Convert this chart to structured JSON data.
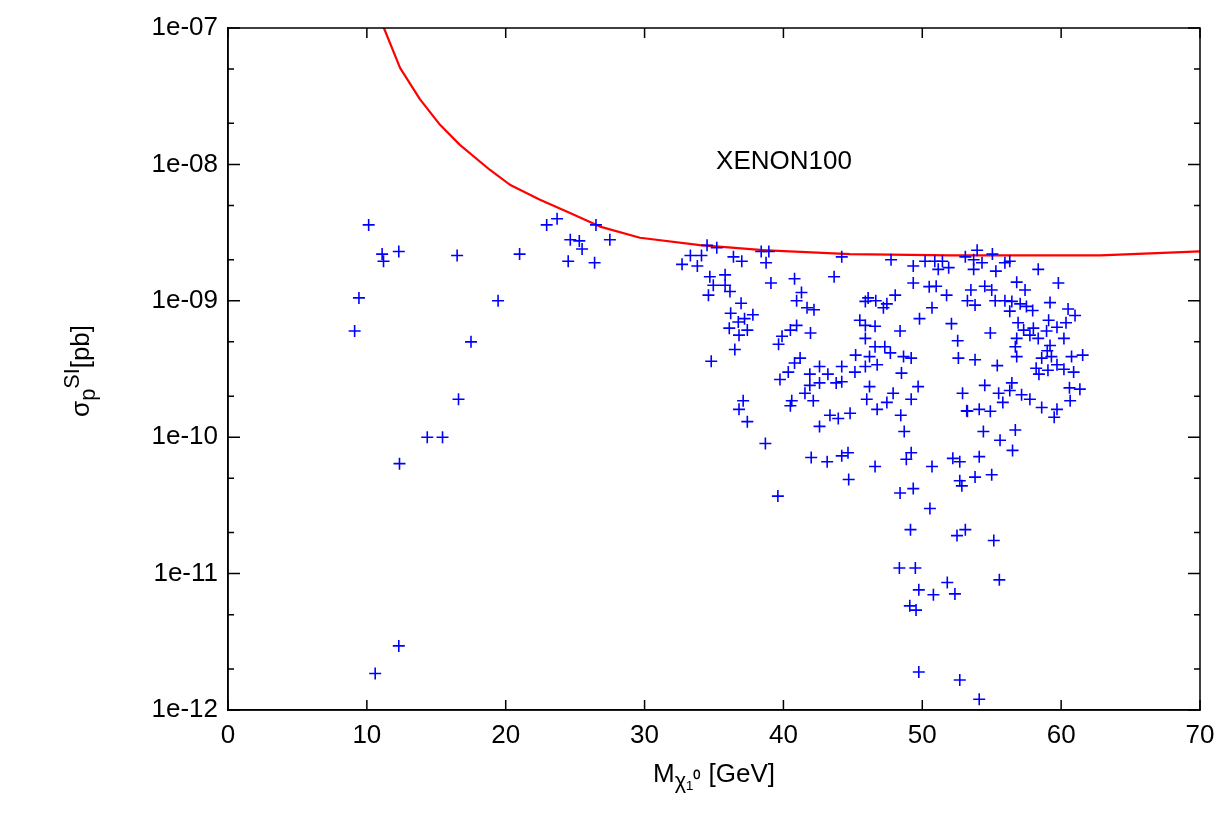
{
  "chart_data": {
    "type": "scatter",
    "xlabel": "M$_{χ₁⁰}$ [GeV]",
    "ylabel": "σ$_{p}$$^{SI}$[pb]",
    "log": "y",
    "marker": "cross",
    "xlim": [
      0,
      70
    ],
    "ylim": [
      1e-12,
      1e-07
    ],
    "xticks": [
      0,
      10,
      20,
      30,
      40,
      50,
      60,
      70
    ],
    "yticks": [
      {
        "value": 1e-12,
        "label": "1e-12"
      },
      {
        "value": 2e-12,
        "label": null
      },
      {
        "value": 5e-12,
        "label": null
      },
      {
        "value": 1e-11,
        "label": "1e-11"
      },
      {
        "value": 2e-11,
        "label": null
      },
      {
        "value": 5e-11,
        "label": null
      },
      {
        "value": 1e-10,
        "label": "1e-10"
      },
      {
        "value": 2e-10,
        "label": null
      },
      {
        "value": 5e-10,
        "label": null
      },
      {
        "value": 1e-09,
        "label": "1e-09"
      },
      {
        "value": 2e-09,
        "label": null
      },
      {
        "value": 5e-09,
        "label": null
      },
      {
        "value": 1e-08,
        "label": "1e-08"
      },
      {
        "value": 2e-08,
        "label": null
      },
      {
        "value": 5e-08,
        "label": null
      },
      {
        "value": 1e-07,
        "label": "1e-07"
      }
    ],
    "annotations": [
      "XENON100"
    ],
    "series": [
      {
        "type": "scatter",
        "color": "#0000ff",
        "x": [
          10.13,
          11.1,
          11.2,
          12.3,
          9.43,
          9.12,
          16.5,
          21.0,
          19.45,
          17.5,
          16.6,
          14.35,
          15.45,
          12.35,
          12.3,
          10.6,
          22.95,
          23.7,
          24.65,
          25.3,
          25.5,
          24.5,
          26.4,
          26.5,
          27.5,
          32.7,
          33.3,
          34.1,
          33.8,
          34.5,
          35.2,
          34.7,
          34.95,
          34.6,
          34.8,
          35.8,
          35.8,
          36.4,
          37.0,
          38.4,
          38.95,
          38.75,
          36.15,
          39.1,
          40.8,
          41.3,
          40.95,
          41.7,
          42.2,
          43.65,
          44.2,
          47.75,
          36.95,
          36.2,
          37.2,
          37.8,
          36.1,
          36.75,
          36.8,
          37.4,
          36.5,
          40.95,
          40.5,
          39.9,
          39.65,
          41.95,
          41.2,
          40.8,
          40.35,
          39.75,
          42.6,
          41.9,
          41.9,
          42.6,
          41.55,
          42.15,
          40.6,
          40.5,
          43.2,
          43.8,
          44.2,
          44.2,
          45.15,
          45.2,
          45.9,
          46.2,
          46.75,
          46.6,
          47.3,
          47.7,
          45.9,
          46.6,
          45.5,
          45.9,
          48.4,
          45.9,
          46.1,
          46.65,
          47.2,
          47.45,
          48.05,
          49.35,
          49.35,
          50.2,
          50.9,
          51.45,
          51.15,
          51.9,
          50.5,
          51.0,
          51.75,
          49.8,
          50.7,
          52.1,
          52.55,
          52.6,
          48.65,
          49.2,
          48.5,
          49.7,
          47.9,
          47.45,
          46.75,
          46.0,
          46.2,
          49.2,
          48.45,
          48.7,
          44.8,
          43.95,
          43.35,
          42.6,
          38.7,
          37.1,
          36.8,
          37.4,
          42.0,
          43.15,
          44.2,
          44.65,
          44.7,
          46.6,
          39.6,
          48.85,
          49.2,
          48.4,
          49.35,
          50.55,
          50.7,
          52.2,
          52.7,
          52.7,
          52.85,
          52.9,
          53.2,
          53.1,
          53.95,
          55.05,
          53.7,
          54.3,
          53.7,
          55.3,
          55.95,
          56.3,
          58.35,
          59.8,
          56.8,
          57.4,
          53.5,
          54.5,
          55.0,
          55.25,
          53.25,
          53.8,
          55.95,
          56.45,
          57.05,
          57.5,
          56.3,
          57.95,
          59.2,
          60.5,
          61.0,
          60.35,
          59.7,
          59.1,
          58.95,
          56.9,
          57.3,
          58.0,
          57.75,
          58.35,
          56.8,
          56.7,
          54.9,
          60.2,
          59.2,
          59.0,
          59.3,
          58.6,
          56.8,
          60.75,
          61.55,
          59.7,
          58.2,
          59.05,
          58.4,
          60.2,
          60.9,
          55.4,
          53.8,
          54.5,
          56.45,
          56.3,
          55.5,
          57.15,
          57.75,
          55.8,
          58.6,
          59.7,
          60.6,
          61.35,
          60.65,
          59.5,
          53.25,
          54.1,
          54.9,
          54.4,
          56.7,
          55.6,
          56.5,
          54.1,
          53.8,
          55.0,
          49.15,
          53.1,
          52.5,
          55.15,
          48.35,
          49.5,
          55.55,
          51.8,
          49.75,
          50.8,
          52.35,
          49.1,
          49.55,
          49.75,
          52.7,
          54.1
        ],
        "values": [
          3.6e-09,
          2.2e-09,
          1.95e-09,
          2.3e-09,
          1.05e-09,
          6e-10,
          2.15e-09,
          2.2e-09,
          1e-09,
          5e-10,
          1.9e-10,
          1e-10,
          1e-10,
          6.4e-11,
          2.95e-12,
          1.85e-12,
          3.6e-09,
          4e-09,
          2.8e-09,
          2.75e-09,
          2.4e-09,
          1.95e-09,
          1.9e-09,
          3.6e-09,
          2.8e-09,
          1.85e-09,
          2.15e-09,
          2.15e-09,
          1.8e-09,
          2.55e-09,
          2.45e-09,
          1.5e-09,
          1.3e-09,
          1.1e-09,
          3.6e-10,
          1.55e-09,
          1.3e-09,
          2.1e-09,
          1.95e-09,
          2.3e-09,
          2.3e-09,
          1.9e-09,
          1.17e-09,
          1.35e-09,
          1.45e-09,
          1.15e-09,
          1e-09,
          8.9e-10,
          8.6e-10,
          1.5e-09,
          2.1e-09,
          2e-09,
          9.6e-10,
          8.1e-10,
          7.4e-10,
          7.9e-10,
          6.3e-10,
          7e-10,
          5.6e-10,
          6.1e-10,
          4.4e-10,
          6.6e-10,
          6.1e-10,
          5.5e-10,
          4.8e-10,
          5.8e-10,
          3.8e-10,
          3.5e-10,
          3e-10,
          2.65e-10,
          3.3e-10,
          2.9e-10,
          2.4e-10,
          2.5e-10,
          2.1e-10,
          1.85e-10,
          1.85e-10,
          1.7e-10,
          2.9e-10,
          2.5e-10,
          3.3e-10,
          2.55e-10,
          3e-10,
          4e-10,
          3.3e-10,
          3.9e-10,
          3.4e-10,
          4.6e-10,
          4.6e-10,
          4.15e-10,
          5.3e-10,
          6.5e-10,
          7.2e-10,
          6.6e-10,
          6e-10,
          9.9e-10,
          1.05e-09,
          1e-09,
          8.9e-10,
          9.5e-10,
          1.1e-09,
          1.8e-09,
          1.35e-09,
          1.95e-09,
          1.95e-09,
          1.95e-09,
          1.7e-09,
          1.75e-09,
          1.27e-09,
          1.28e-09,
          1.1e-09,
          7.4e-10,
          8.9e-10,
          6.8e-10,
          5.1e-10,
          3.8e-10,
          3.9e-10,
          3.8e-10,
          2.95e-10,
          2.35e-10,
          2.1e-10,
          1.8e-10,
          1.6e-10,
          1.9e-10,
          2.35e-10,
          1.9e-10,
          1.45e-10,
          1.1e-10,
          1.5e-10,
          1.37e-10,
          1.45e-10,
          1.2e-10,
          9e-11,
          1.85e-10,
          1.6e-10,
          1.3e-10,
          7.1e-11,
          6.6e-11,
          7.3e-11,
          7.7e-11,
          4.9e-11,
          6.1e-11,
          3.7e-11,
          6.9e-11,
          7.7e-11,
          3.9e-11,
          4.2e-11,
          3e-11,
          6.1e-11,
          7e-11,
          6.6e-11,
          4.8e-11,
          4.4e-11,
          2.1e-10,
          1.56e-10,
          2.1e-09,
          2.35e-09,
          2.2e-09,
          2e-09,
          1.9e-09,
          1.7e-09,
          1.65e-09,
          1.9e-09,
          1.95e-09,
          1.7e-09,
          1.35e-09,
          1.37e-09,
          1.2e-09,
          1.2e-09,
          1.28e-09,
          1.2e-09,
          1e-09,
          1e-09,
          9.3e-10,
          1e-09,
          9.9e-10,
          9.5e-10,
          9.1e-10,
          8.4e-10,
          8.5e-10,
          9.7e-10,
          8.7e-10,
          7.8e-10,
          6.9e-10,
          6.4e-10,
          7.2e-10,
          6e-10,
          6.9e-10,
          6.1e-10,
          6.3e-10,
          5.6e-10,
          5.3e-10,
          5.3e-10,
          4.6e-10,
          5.8e-10,
          5.3e-10,
          4.7e-10,
          4.3e-10,
          3.9e-10,
          3.8e-10,
          3.9e-10,
          3.9e-10,
          4e-10,
          3.4e-10,
          3.2e-10,
          3.1e-10,
          2.9e-10,
          3.15e-10,
          3e-10,
          3.35e-10,
          3.7e-10,
          2.4e-10,
          2.5e-10,
          2.2e-10,
          2.1e-10,
          2.05e-10,
          1.9e-10,
          1.8e-10,
          1.65e-10,
          1.6e-10,
          2.3e-10,
          2.25e-10,
          1.85e-10,
          1.4e-10,
          1.55e-10,
          1.6e-10,
          1.55e-10,
          1.1e-10,
          1.13e-10,
          9.5e-11,
          8e-11,
          7.2e-11,
          5.1e-11,
          5.3e-11,
          2.1e-11,
          2.1e-11,
          1.9e-11,
          1.75e-11,
          1.1e-11,
          1.1e-11,
          9e-12,
          8.6e-12,
          7.6e-12,
          7e-12,
          7.1e-12,
          5.8e-12,
          5.4e-12,
          1.9e-12,
          1.66e-12,
          1.2e-12
        ]
      },
      {
        "type": "line",
        "color": "#ff0000",
        "marker": "none",
        "x": [
          11.23,
          12.39,
          13.83,
          15.27,
          16.7,
          18.87,
          20.3,
          22.47,
          24.63,
          26.79,
          29.67,
          33.99,
          38.31,
          44.8,
          52.0,
          62.8,
          70
        ],
        "values": [
          1e-07,
          5.1e-08,
          3e-08,
          1.95e-08,
          1.39e-08,
          9.1e-09,
          7.1e-09,
          5.5e-09,
          4.4e-09,
          3.5e-09,
          2.9e-09,
          2.56e-09,
          2.36e-09,
          2.2e-09,
          2.15e-09,
          2.15e-09,
          2.3e-09
        ]
      }
    ]
  }
}
